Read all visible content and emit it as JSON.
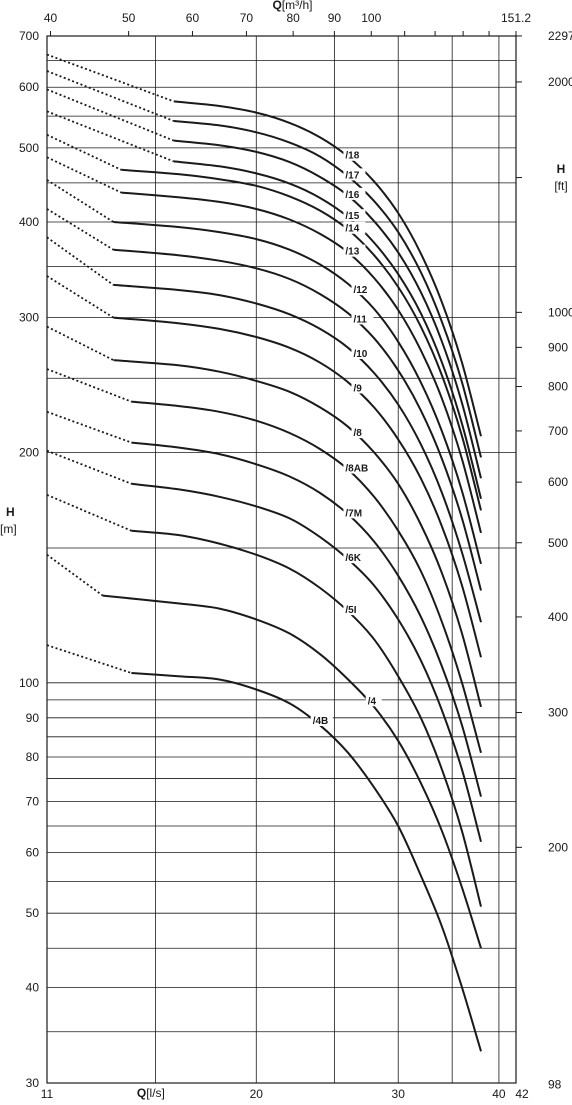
{
  "chart_data": {
    "type": "line",
    "scale": "log-log",
    "grid": true,
    "x_axis_bottom": {
      "label_bold": "Q",
      "label_unit": "[l/s]",
      "lim": [
        11,
        42
      ],
      "ticks": [
        11,
        20,
        30,
        40,
        42
      ],
      "tick_labels": [
        "11",
        "20",
        "30",
        "40",
        "42"
      ]
    },
    "x_axis_top": {
      "label_bold": "Q",
      "label_unit": "[m³/h]",
      "ticks": [
        40,
        50,
        60,
        70,
        80,
        90,
        100,
        151.2
      ],
      "tick_labels": [
        "40",
        "50",
        "60",
        "70",
        "80",
        "90",
        "100",
        "151.2"
      ]
    },
    "y_axis_left": {
      "label_bold": "H",
      "label_unit": "[m]",
      "lim": [
        30,
        700
      ],
      "ticks": [
        30,
        40,
        50,
        60,
        70,
        80,
        90,
        100,
        200,
        300,
        400,
        500,
        600,
        700
      ],
      "tick_labels": [
        "30",
        "40",
        "50",
        "60",
        "70",
        "80",
        "90",
        "100",
        "200",
        "300",
        "400",
        "500",
        "600",
        "700"
      ]
    },
    "y_axis_right": {
      "label_bold": "H",
      "label_unit": "[ft]",
      "ticks": [
        98,
        200,
        300,
        400,
        500,
        600,
        700,
        800,
        900,
        1000,
        2000,
        2297
      ],
      "tick_labels": [
        "98",
        "200",
        "300",
        "400",
        "500",
        "600",
        "700",
        "800",
        "900",
        "1000",
        "2000",
        "2297"
      ]
    },
    "series": [
      {
        "name": "/18",
        "start": [
          11.0,
          662
        ],
        "knee": [
          15.8,
          575
        ],
        "q": [
          15.8,
          18,
          20,
          22,
          24,
          26,
          28,
          30,
          32,
          34,
          36,
          38.0
        ],
        "h": [
          575,
          567,
          556,
          539,
          516,
          487,
          452,
          411,
          364,
          314,
          262,
          210
        ]
      },
      {
        "name": "/17",
        "start": [
          11.0,
          630
        ],
        "knee": [
          15.8,
          542
        ],
        "q": [
          15.8,
          18,
          20,
          22,
          24,
          26,
          28,
          30,
          32,
          34,
          36,
          38.0
        ],
        "h": [
          542,
          535,
          524,
          508,
          487,
          459,
          426,
          388,
          344,
          296,
          247,
          197
        ]
      },
      {
        "name": "/16",
        "start": [
          11.0,
          596
        ],
        "knee": [
          15.8,
          511
        ],
        "q": [
          15.8,
          18,
          20,
          22,
          24,
          26,
          28,
          30,
          32,
          34,
          36,
          38.0
        ],
        "h": [
          511,
          504,
          494,
          479,
          458,
          433,
          401,
          365,
          324,
          279,
          232,
          185
        ]
      },
      {
        "name": "/15",
        "start": [
          11.0,
          558
        ],
        "knee": [
          15.8,
          480
        ],
        "q": [
          15.8,
          18,
          20,
          22,
          24,
          26,
          28,
          30,
          32,
          34,
          36,
          38.0
        ],
        "h": [
          480,
          473,
          463,
          449,
          430,
          406,
          376,
          342,
          304,
          262,
          218,
          174
        ]
      },
      {
        "name": "/14",
        "start": [
          11.0,
          520
        ],
        "knee": [
          13.6,
          468
        ],
        "q": [
          13.6,
          16,
          18,
          20,
          22,
          24,
          26,
          28,
          30,
          32,
          34,
          36,
          38.0
        ],
        "h": [
          468,
          462,
          455,
          446,
          432,
          414,
          391,
          362,
          329,
          292,
          252,
          210,
          168
        ]
      },
      {
        "name": "/13",
        "start": [
          11.0,
          486
        ],
        "knee": [
          13.6,
          437
        ],
        "q": [
          13.6,
          16,
          18,
          20,
          22,
          24,
          26,
          28,
          30,
          32,
          34,
          36,
          38.0
        ],
        "h": [
          437,
          431,
          425,
          416,
          403,
          386,
          365,
          338,
          307,
          272,
          235,
          196,
          157
        ]
      },
      {
        "name": "/12",
        "start": [
          11.0,
          454
        ],
        "knee": [
          13.3,
          400
        ],
        "q": [
          13.3,
          16,
          18,
          20,
          22,
          24,
          26,
          28,
          30,
          32,
          34,
          36,
          38.0
        ],
        "h": [
          400,
          394,
          388,
          380,
          368,
          352,
          332,
          308,
          279,
          247,
          213,
          178,
          143
        ]
      },
      {
        "name": "/11",
        "start": [
          11.0,
          416
        ],
        "knee": [
          13.3,
          368
        ],
        "q": [
          13.3,
          16,
          18,
          20,
          22,
          24,
          26,
          28,
          30,
          32,
          34,
          36,
          38.0
        ],
        "h": [
          368,
          362,
          356,
          348,
          337,
          322,
          304,
          282,
          256,
          227,
          196,
          164,
          132
        ]
      },
      {
        "name": "/10",
        "start": [
          11.0,
          382
        ],
        "knee": [
          13.3,
          331
        ],
        "q": [
          13.3,
          16,
          18,
          20,
          22,
          24,
          26,
          28,
          30,
          32,
          34,
          36,
          38.0
        ],
        "h": [
          331,
          326,
          321,
          313,
          303,
          290,
          274,
          254,
          231,
          205,
          177,
          148,
          120
        ]
      },
      {
        "name": "/9",
        "start": [
          11.0,
          340
        ],
        "knee": [
          13.3,
          300
        ],
        "q": [
          13.3,
          16,
          18,
          20,
          22,
          24,
          26,
          28,
          30,
          32,
          34,
          36,
          38.0
        ],
        "h": [
          300,
          295,
          290,
          283,
          274,
          262,
          247,
          229,
          208,
          185,
          160,
          134,
          108
        ]
      },
      {
        "name": "/8",
        "start": [
          11.0,
          292
        ],
        "knee": [
          13.3,
          264
        ],
        "q": [
          13.3,
          16,
          18,
          20,
          22,
          24,
          26,
          28,
          30,
          32,
          34,
          36,
          38.0
        ],
        "h": [
          264,
          260,
          255,
          248,
          240,
          229,
          216,
          200,
          182,
          161,
          139,
          116,
          93
        ]
      },
      {
        "name": "/8AB",
        "start": [
          11.0,
          257
        ],
        "knee": [
          14.0,
          233
        ],
        "q": [
          14.0,
          16,
          18,
          20,
          22,
          24,
          26,
          28,
          30,
          32,
          34,
          36,
          38.0
        ],
        "h": [
          233,
          230,
          226,
          220,
          212,
          202,
          190,
          175,
          158,
          140,
          120,
          100,
          81
        ]
      },
      {
        "name": "/7M",
        "start": [
          11.0,
          226
        ],
        "knee": [
          14.0,
          206
        ],
        "q": [
          14.0,
          16,
          18,
          20,
          22,
          24,
          26,
          28,
          30,
          32,
          34,
          36,
          38.0
        ],
        "h": [
          206,
          203,
          199,
          193,
          186,
          177,
          166,
          153,
          138,
          122,
          105,
          88,
          71
        ]
      },
      {
        "name": "/6K",
        "start": [
          11.0,
          201
        ],
        "knee": [
          14.0,
          182
        ],
        "q": [
          14.0,
          16,
          18,
          20,
          22,
          24,
          26,
          28,
          30,
          32,
          34,
          36,
          38.0
        ],
        "h": [
          182,
          179,
          175,
          170,
          164,
          155,
          145,
          134,
          121,
          107,
          92,
          77,
          62
        ]
      },
      {
        "name": "/5I",
        "start": [
          11.0,
          176
        ],
        "knee": [
          14.0,
          158
        ],
        "q": [
          14.0,
          16,
          18,
          20,
          22,
          24,
          26,
          28,
          30,
          32,
          34,
          36,
          38.0
        ],
        "h": [
          158,
          156,
          152,
          147,
          141,
          133,
          124,
          114,
          102,
          90,
          77,
          64,
          51
        ]
      },
      {
        "name": "/4",
        "start": [
          11.0,
          147
        ],
        "knee": [
          12.9,
          130
        ],
        "q": [
          12.9,
          16,
          18,
          20,
          22,
          24,
          26,
          28,
          30,
          32,
          34,
          36,
          38.0
        ],
        "h": [
          130,
          127,
          125,
          121,
          116,
          109,
          101,
          93,
          84,
          74,
          64,
          54,
          45
        ]
      },
      {
        "name": "/4B",
        "start": [
          11.0,
          112
        ],
        "knee": [
          14.0,
          103
        ],
        "q": [
          14.0,
          16,
          18,
          20,
          22,
          24,
          26,
          28,
          30,
          32,
          34,
          36,
          38.0
        ],
        "h": [
          103,
          102,
          101,
          98,
          94,
          88,
          81,
          73,
          65,
          56,
          48,
          40,
          33
        ]
      }
    ]
  }
}
